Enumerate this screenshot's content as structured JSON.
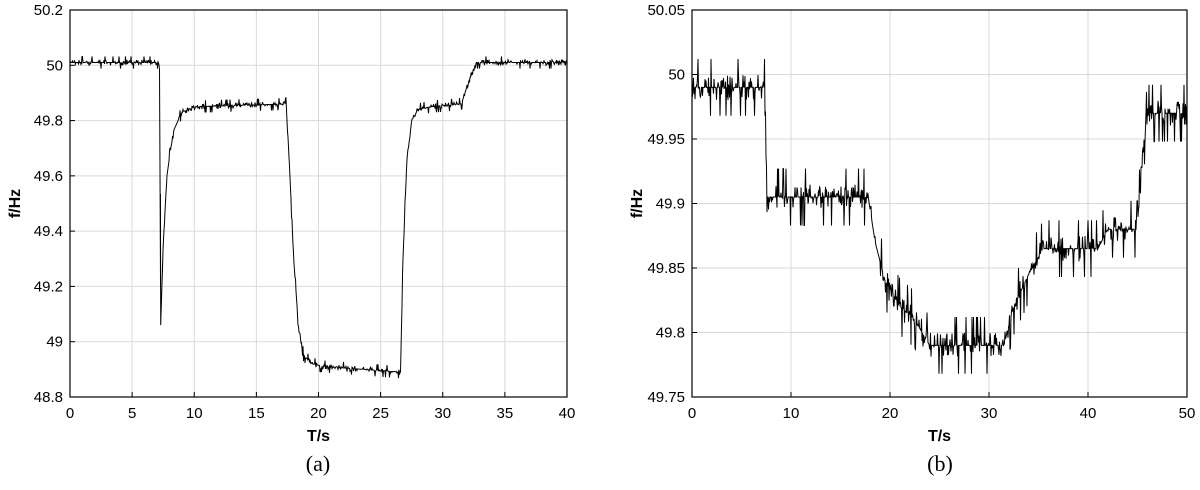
{
  "chart_data": [
    {
      "type": "line",
      "panel": "a",
      "caption": "(a)",
      "xlabel": "T/s",
      "ylabel": "f/Hz",
      "xlim": [
        0,
        40
      ],
      "ylim": [
        48.8,
        50.2
      ],
      "xticks": [
        0,
        5,
        10,
        15,
        20,
        25,
        30,
        35,
        40
      ],
      "xtick_labels": [
        "0",
        "5",
        "10",
        "15",
        "20",
        "25",
        "30",
        "35",
        "40"
      ],
      "yticks": [
        48.8,
        49.0,
        49.2,
        49.4,
        49.6,
        49.8,
        50.0,
        50.2
      ],
      "ytick_labels": [
        "48.8",
        "49",
        "49.2",
        "49.4",
        "49.6",
        "49.8",
        "50",
        "50.2"
      ],
      "grid": true,
      "series": [
        {
          "color": "#000000",
          "noise": 0.02,
          "x": [
            0,
            7.2,
            7.3,
            7.5,
            7.8,
            8.3,
            9.0,
            10.0,
            17.4,
            17.7,
            18.0,
            18.4,
            18.8,
            19.5,
            20.5,
            26.6,
            26.8,
            27.1,
            27.5,
            28.0,
            29.0,
            31.5,
            32.0,
            32.7,
            40
          ],
          "y": [
            50.01,
            50.01,
            49.06,
            49.35,
            49.6,
            49.76,
            49.83,
            49.85,
            49.86,
            49.6,
            49.3,
            49.05,
            48.95,
            48.92,
            48.91,
            48.89,
            49.3,
            49.65,
            49.8,
            49.84,
            49.85,
            49.86,
            49.93,
            50.01,
            50.01
          ]
        }
      ]
    },
    {
      "type": "line",
      "panel": "b",
      "caption": "(b)",
      "xlabel": "T/s",
      "ylabel": "f/Hz",
      "xlim": [
        0,
        50
      ],
      "ylim": [
        49.75,
        50.05
      ],
      "xticks": [
        0,
        10,
        20,
        30,
        40,
        50
      ],
      "xtick_labels": [
        "0",
        "10",
        "20",
        "30",
        "40",
        "50"
      ],
      "yticks": [
        49.75,
        49.8,
        49.85,
        49.9,
        49.95,
        50.0,
        50.05
      ],
      "ytick_labels": [
        "49.75",
        "49.8",
        "49.85",
        "49.9",
        "49.95",
        "50",
        "50.05"
      ],
      "grid": true,
      "series": [
        {
          "color": "#000000",
          "noise": 0.02,
          "x": [
            0,
            7.4,
            7.6,
            17.8,
            18.5,
            19.5,
            21.0,
            22.5,
            24.0,
            31.5,
            32.5,
            34.0,
            35.5,
            41.0,
            42.0,
            45.0,
            45.5,
            46.0,
            50
          ],
          "y": [
            49.99,
            49.99,
            49.905,
            49.905,
            49.87,
            49.84,
            49.82,
            49.81,
            49.79,
            49.79,
            49.82,
            49.845,
            49.865,
            49.865,
            49.88,
            49.88,
            49.94,
            49.97,
            49.97
          ]
        }
      ]
    }
  ]
}
